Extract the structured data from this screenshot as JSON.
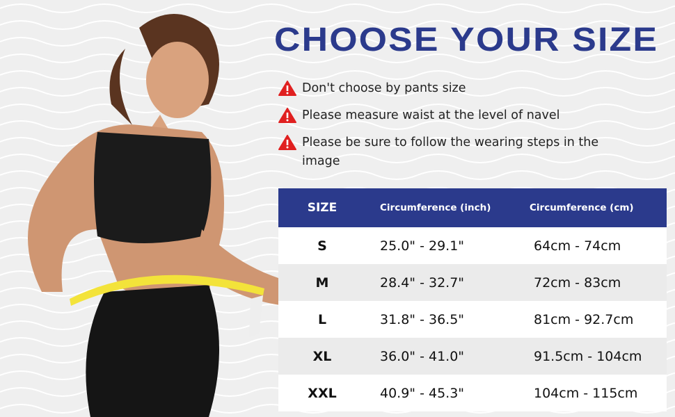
{
  "title": "CHOOSE YOUR SIZE",
  "colors": {
    "accent": "#2b3a8c",
    "warning": "#e02020"
  },
  "tips": [
    {
      "icon": "warning-icon",
      "text": "Don't choose by pants size"
    },
    {
      "icon": "warning-icon",
      "text": "Please measure waist at the level of navel"
    },
    {
      "icon": "warning-icon",
      "text": "Please be sure to follow the wearing steps in the image"
    }
  ],
  "table": {
    "headers": [
      "SIZE",
      "Circumference (inch)",
      "Circumference (cm)"
    ],
    "rows": [
      [
        "S",
        "25.0\" - 29.1\"",
        "64cm - 74cm"
      ],
      [
        "M",
        "28.4\" - 32.7\"",
        "72cm - 83cm"
      ],
      [
        "L",
        "31.8\" - 36.5\"",
        "81cm - 92.7cm"
      ],
      [
        "XL",
        "36.0\" - 41.0\"",
        "91.5cm - 104cm"
      ],
      [
        "XXL",
        "40.9\" - 45.3\"",
        "104cm - 115cm"
      ]
    ]
  }
}
